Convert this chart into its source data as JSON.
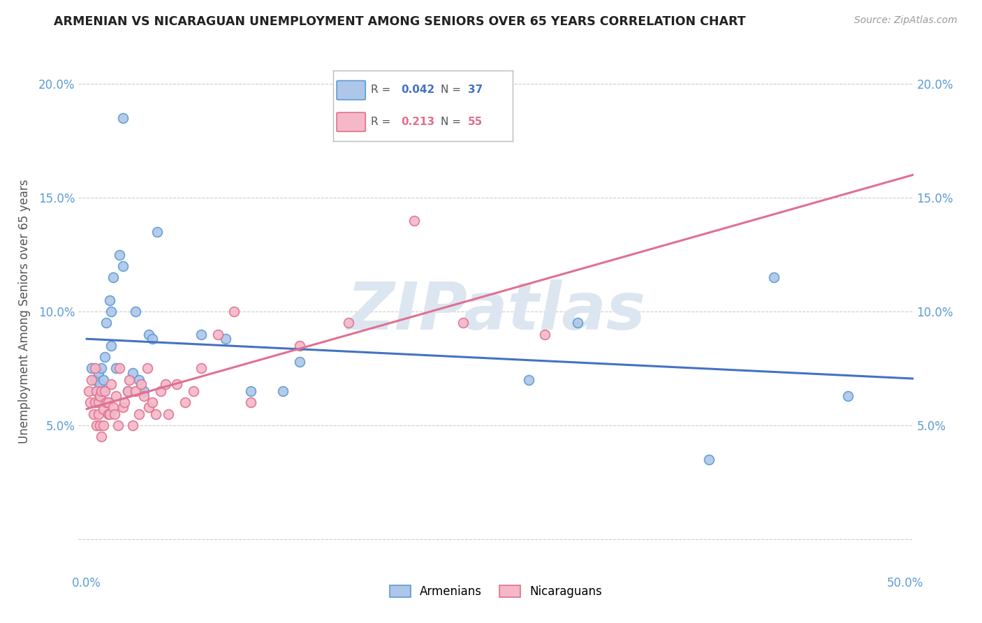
{
  "title": "ARMENIAN VS NICARAGUAN UNEMPLOYMENT AMONG SENIORS OVER 65 YEARS CORRELATION CHART",
  "source": "Source: ZipAtlas.com",
  "ylabel": "Unemployment Among Seniors over 65 years",
  "xlim": [
    -0.005,
    0.505
  ],
  "ylim": [
    -0.015,
    0.215
  ],
  "xticks": [
    0.0,
    0.1,
    0.2,
    0.3,
    0.4,
    0.5
  ],
  "xticklabels": [
    "0.0%",
    "",
    "",
    "",
    "",
    "50.0%"
  ],
  "yticks": [
    0.0,
    0.05,
    0.1,
    0.15,
    0.2
  ],
  "yticklabels_left": [
    "",
    "5.0%",
    "10.0%",
    "15.0%",
    "20.0%"
  ],
  "yticklabels_right": [
    "",
    "5.0%",
    "10.0%",
    "15.0%",
    "20.0%"
  ],
  "armenian_R": 0.042,
  "armenian_N": 37,
  "nicaraguan_R": 0.213,
  "nicaraguan_N": 55,
  "armenian_color": "#aec6e8",
  "armenian_edge_color": "#5b9bd5",
  "nicaraguan_color": "#f4b8c8",
  "nicaraguan_edge_color": "#e07090",
  "armenian_line_color": "#4472c4",
  "nicaraguan_line_color": "#e07090",
  "watermark": "ZIPatlas",
  "watermark_color": "#dce6f0",
  "background_color": "#ffffff",
  "arm_x": [
    0.003,
    0.005,
    0.006,
    0.007,
    0.008,
    0.009,
    0.01,
    0.01,
    0.011,
    0.012,
    0.013,
    0.014,
    0.015,
    0.016,
    0.018,
    0.02,
    0.022,
    0.025,
    0.028,
    0.03,
    0.032,
    0.035,
    0.038,
    0.04,
    0.043,
    0.07,
    0.085,
    0.1,
    0.12,
    0.13,
    0.022,
    0.27,
    0.3,
    0.38,
    0.42,
    0.465,
    0.015
  ],
  "arm_y": [
    0.075,
    0.07,
    0.065,
    0.073,
    0.068,
    0.075,
    0.07,
    0.065,
    0.08,
    0.095,
    0.06,
    0.105,
    0.085,
    0.115,
    0.075,
    0.125,
    0.12,
    0.065,
    0.073,
    0.1,
    0.07,
    0.065,
    0.09,
    0.088,
    0.135,
    0.09,
    0.088,
    0.065,
    0.065,
    0.078,
    0.185,
    0.07,
    0.095,
    0.035,
    0.115,
    0.063,
    0.1
  ],
  "nic_x": [
    0.001,
    0.002,
    0.003,
    0.004,
    0.005,
    0.005,
    0.006,
    0.006,
    0.007,
    0.007,
    0.008,
    0.008,
    0.009,
    0.009,
    0.01,
    0.01,
    0.011,
    0.012,
    0.013,
    0.013,
    0.014,
    0.015,
    0.016,
    0.017,
    0.018,
    0.019,
    0.02,
    0.022,
    0.023,
    0.025,
    0.026,
    0.028,
    0.03,
    0.032,
    0.033,
    0.035,
    0.037,
    0.038,
    0.04,
    0.042,
    0.045,
    0.048,
    0.05,
    0.055,
    0.06,
    0.065,
    0.07,
    0.08,
    0.09,
    0.1,
    0.13,
    0.16,
    0.2,
    0.23,
    0.28
  ],
  "nic_y": [
    0.065,
    0.06,
    0.07,
    0.055,
    0.075,
    0.06,
    0.05,
    0.065,
    0.055,
    0.06,
    0.05,
    0.063,
    0.045,
    0.065,
    0.057,
    0.05,
    0.065,
    0.06,
    0.055,
    0.06,
    0.055,
    0.068,
    0.058,
    0.055,
    0.063,
    0.05,
    0.075,
    0.058,
    0.06,
    0.065,
    0.07,
    0.05,
    0.065,
    0.055,
    0.068,
    0.063,
    0.075,
    0.058,
    0.06,
    0.055,
    0.065,
    0.068,
    0.055,
    0.068,
    0.06,
    0.065,
    0.075,
    0.09,
    0.1,
    0.06,
    0.085,
    0.095,
    0.14,
    0.095,
    0.09
  ]
}
